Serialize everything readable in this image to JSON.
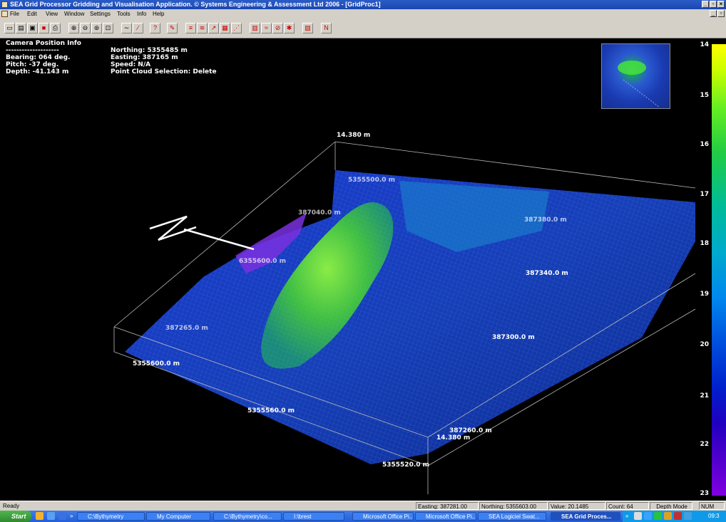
{
  "window": {
    "title": "SEA Grid Processor Gridding and Visualisation Application. © Systems Engineering & Assessment Ltd 2006 - [GridProc1]",
    "min": "_",
    "restore": "▫",
    "close": "×"
  },
  "menu": [
    "File",
    "Edit",
    "View",
    "Window",
    "Settings",
    "Tools",
    "Info",
    "Help"
  ],
  "toolbar": {
    "buttons": [
      "new-icon",
      "open-icon",
      "save-icon",
      "delete-icon",
      "print-icon",
      "zoom-in-icon",
      "zoom-out-icon",
      "zoom-fit-icon",
      "zoom-box-icon",
      "profile-icon",
      "line-icon",
      "help-icon",
      "erase-icon",
      "tool-a-icon",
      "tool-b-icon",
      "tool-c-icon",
      "tool-d-icon",
      "tool-e-icon",
      "tool-f-icon",
      "tool-g-icon",
      "tool-h-icon",
      "tool-i-icon",
      "tool-j-icon",
      "tool-k-icon"
    ]
  },
  "camera": {
    "header": "Camera Position Info",
    "divider": "--------------------",
    "bearing": "Bearing: 064 deg.",
    "pitch": "Pitch: -37 deg.",
    "depth": "Depth: -41.143 m",
    "northing": "Northing: 5355485 m",
    "easting": "Easting: 387165 m",
    "speed": "Speed: N/A",
    "pointcloud": "Point Cloud Selection: Delete"
  },
  "axis_labels": [
    {
      "text": "14.380 m"
    },
    {
      "text": "5355500.0 m"
    },
    {
      "text": "387040.0 m"
    },
    {
      "text": "6355600.0 m"
    },
    {
      "text": "387380.0 m"
    },
    {
      "text": "387340.0 m"
    },
    {
      "text": "387265.0 m"
    },
    {
      "text": "387300.0 m"
    },
    {
      "text": "5355600.0 m"
    },
    {
      "text": "5355560.0 m"
    },
    {
      "text": "387260.0 m"
    },
    {
      "text": "14.380 m"
    },
    {
      "text": "5355520.0 m"
    }
  ],
  "depth_scale": {
    "ticks": [
      "14",
      "15",
      "16",
      "17",
      "18",
      "19",
      "20",
      "21",
      "22",
      "23"
    ],
    "colors": {
      "top": "#ffff00",
      "mid": "#00aacc",
      "bottom": "#8000e0"
    }
  },
  "status": {
    "ready": "Ready",
    "easting": "Easting: 387281.00",
    "northing": "Northing: 5355603.00",
    "value": "Value: 20.1485",
    "count": "Count: 64",
    "mode": "Depth Mode",
    "num": "NUM"
  },
  "taskbar": {
    "start": "Start",
    "quick": "»",
    "tasks": [
      "C:\\Bythymetry",
      "My Computer",
      "C:\\Bythymetry\\co...",
      "I:\\brest",
      "Microsoft Office Pi...",
      "Microsoft Office Pi...",
      "SEA Logiciel Swat...",
      "SEA Grid Proces..."
    ],
    "clock": "09:3",
    "tray_arrow": "«"
  }
}
